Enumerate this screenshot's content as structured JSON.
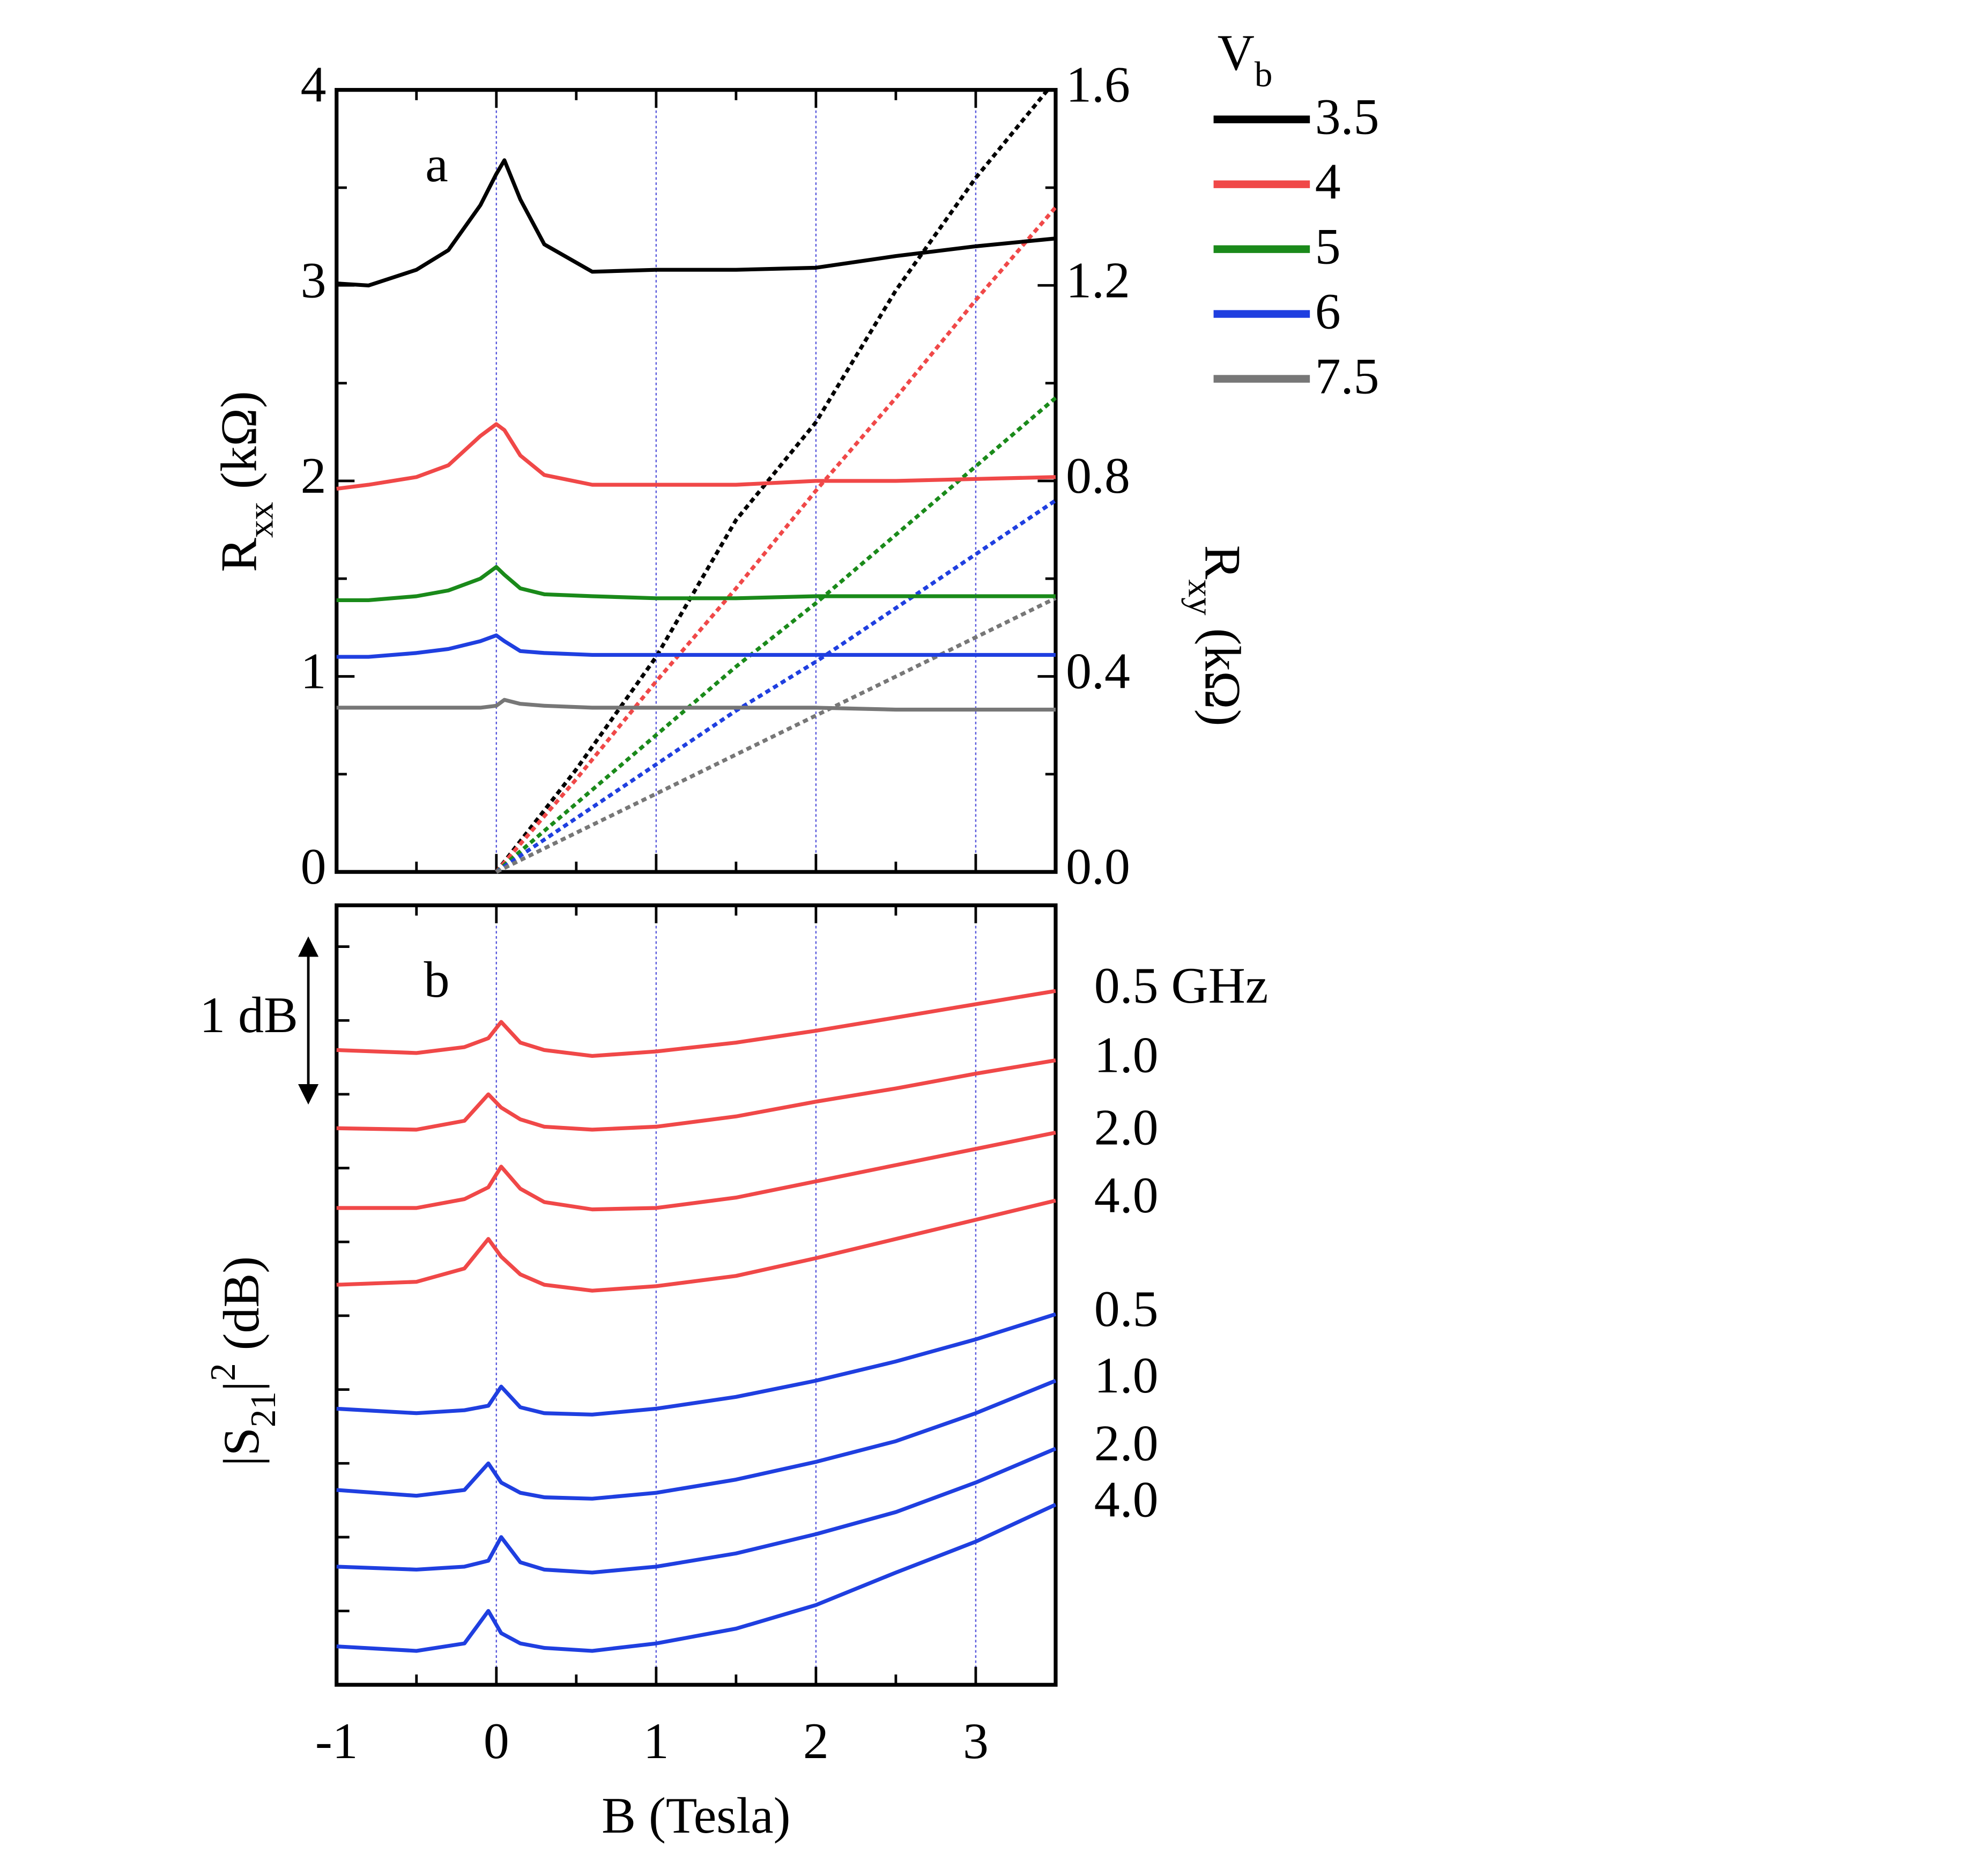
{
  "chart_data": [
    {
      "type": "line",
      "label": "a",
      "xlim": [
        -1,
        3.5
      ],
      "xticks": [
        -1,
        0,
        1,
        2,
        3
      ],
      "xminor": [
        -0.5,
        0.5,
        1.5,
        2.5
      ],
      "ylim": [
        0,
        4
      ],
      "yticks": [
        0,
        1,
        2,
        3,
        4
      ],
      "yminor": [
        0.5,
        1.5,
        2.5,
        3.5
      ],
      "y2lim": [
        0,
        1.6
      ],
      "y2ticks": [
        {
          "value": 0,
          "label": "0.0"
        },
        0.4,
        0.8,
        1.2,
        1.6
      ],
      "y2minor": [
        0.2,
        0.6,
        1.0,
        1.4
      ],
      "grid": "x",
      "grid_color": "#5a5adc",
      "ylabel": {
        "text": "R",
        "sub": "xx",
        "rest": " (kΩ)"
      },
      "y2label": {
        "text": "R",
        "sub": "xy",
        "rest": " (kΩ)"
      },
      "legend_title": {
        "text": "V",
        "sub": "b"
      },
      "x": [
        -1,
        -0.8,
        -0.5,
        -0.3,
        -0.1,
        0,
        0.05,
        0.15,
        0.3,
        0.6,
        1,
        1.5,
        2,
        2.5,
        3,
        3.5
      ],
      "series": [
        {
          "name": "3.5",
          "color": "#000000",
          "values": [
            3.01,
            3.0,
            3.08,
            3.18,
            3.41,
            3.57,
            3.64,
            3.44,
            3.21,
            3.07,
            3.08,
            3.08,
            3.09,
            3.15,
            3.2,
            3.24
          ]
        },
        {
          "name": "4",
          "color": "#f04848",
          "values": [
            1.96,
            1.98,
            2.02,
            2.08,
            2.23,
            2.29,
            2.26,
            2.13,
            2.03,
            1.98,
            1.98,
            1.98,
            2.0,
            2.0,
            2.01,
            2.02
          ]
        },
        {
          "name": "5",
          "color": "#1a8a1a",
          "values": [
            1.39,
            1.39,
            1.41,
            1.44,
            1.5,
            1.56,
            1.52,
            1.45,
            1.42,
            1.41,
            1.4,
            1.4,
            1.41,
            1.41,
            1.41,
            1.41
          ]
        },
        {
          "name": "6",
          "color": "#1f3fe0",
          "values": [
            1.1,
            1.1,
            1.12,
            1.14,
            1.18,
            1.21,
            1.18,
            1.13,
            1.12,
            1.11,
            1.11,
            1.11,
            1.11,
            1.11,
            1.11,
            1.11
          ]
        },
        {
          "name": "7.5",
          "color": "#777777",
          "values": [
            0.84,
            0.84,
            0.84,
            0.84,
            0.84,
            0.85,
            0.88,
            0.86,
            0.85,
            0.84,
            0.84,
            0.84,
            0.84,
            0.83,
            0.83,
            0.83
          ]
        }
      ],
      "hall_series": [
        {
          "color": "#000000",
          "axis": "y2",
          "x": [
            0,
            0.5,
            1,
            1.5,
            2,
            2.5,
            3,
            3.45
          ],
          "values": [
            0,
            0.21,
            0.44,
            0.72,
            0.92,
            1.19,
            1.42,
            1.6
          ]
        },
        {
          "color": "#f04848",
          "axis": "y2",
          "x": [
            0,
            0.5,
            1,
            1.5,
            2,
            2.5,
            3,
            3.5
          ],
          "values": [
            0,
            0.19,
            0.39,
            0.58,
            0.78,
            0.97,
            1.17,
            1.36
          ]
        },
        {
          "color": "#1a8a1a",
          "axis": "y2",
          "x": [
            0,
            0.5,
            1,
            1.5,
            2,
            2.5,
            3,
            3.5
          ],
          "values": [
            0,
            0.14,
            0.28,
            0.42,
            0.55,
            0.69,
            0.83,
            0.97
          ]
        },
        {
          "color": "#1f3fe0",
          "axis": "y2",
          "x": [
            0,
            0.5,
            1,
            1.5,
            2,
            2.5,
            3,
            3.5
          ],
          "values": [
            0,
            0.11,
            0.22,
            0.33,
            0.43,
            0.54,
            0.65,
            0.76
          ]
        },
        {
          "color": "#777777",
          "axis": "y2",
          "x": [
            0,
            0.5,
            1,
            1.5,
            2,
            2.5,
            3,
            3.5
          ],
          "values": [
            0,
            0.08,
            0.16,
            0.24,
            0.32,
            0.4,
            0.48,
            0.56
          ]
        }
      ]
    },
    {
      "type": "line",
      "label": "b",
      "xlabel": "B (Tesla)",
      "xlim": [
        -1,
        3.5
      ],
      "xticks": [
        -1,
        0,
        1,
        2,
        3
      ],
      "xminor": [
        -0.5,
        0.5,
        1.5,
        2.5
      ],
      "ylim": [
        0,
        5.28
      ],
      "yticks": [
        0,
        0.5,
        1,
        1.5,
        2,
        2.5,
        3,
        3.5,
        4,
        4.5,
        5
      ],
      "grid": "x",
      "grid_color": "#5a5adc",
      "ylabel": {
        "text": "|S",
        "sub": "21",
        "mid": "|",
        "sup": "2",
        "rest": " (dB)"
      },
      "annotation": {
        "text": "1 dB",
        "from": 5,
        "to": 4
      },
      "x": [
        -1,
        -0.5,
        -0.2,
        -0.05,
        0.03,
        0.15,
        0.3,
        0.6,
        1,
        1.5,
        2,
        2.5,
        3,
        3.5
      ],
      "series": [
        {
          "name": "0.5 GHz",
          "color": "#f04848",
          "values": [
            4.3,
            4.28,
            4.32,
            4.38,
            4.49,
            4.35,
            4.3,
            4.26,
            4.29,
            4.35,
            4.43,
            4.52,
            4.61,
            4.7
          ]
        },
        {
          "name": "1.0",
          "color": "#f04848",
          "values": [
            3.77,
            3.76,
            3.82,
            4.0,
            3.91,
            3.83,
            3.78,
            3.76,
            3.78,
            3.85,
            3.95,
            4.04,
            4.14,
            4.23
          ]
        },
        {
          "name": "2.0",
          "color": "#f04848",
          "values": [
            3.23,
            3.23,
            3.29,
            3.37,
            3.51,
            3.36,
            3.27,
            3.22,
            3.23,
            3.3,
            3.41,
            3.52,
            3.63,
            3.74
          ]
        },
        {
          "name": "4.0",
          "color": "#f04848",
          "values": [
            2.71,
            2.73,
            2.82,
            3.02,
            2.9,
            2.78,
            2.71,
            2.67,
            2.7,
            2.77,
            2.89,
            3.02,
            3.15,
            3.28
          ]
        },
        {
          "name": "0.5",
          "color": "#1f3fe0",
          "values": [
            1.87,
            1.84,
            1.86,
            1.89,
            2.02,
            1.88,
            1.84,
            1.83,
            1.87,
            1.95,
            2.06,
            2.19,
            2.34,
            2.51
          ]
        },
        {
          "name": "1.0",
          "color": "#1f3fe0",
          "values": [
            1.32,
            1.28,
            1.32,
            1.5,
            1.37,
            1.3,
            1.27,
            1.26,
            1.3,
            1.39,
            1.51,
            1.65,
            1.84,
            2.06
          ]
        },
        {
          "name": "2.0",
          "color": "#1f3fe0",
          "values": [
            0.8,
            0.78,
            0.8,
            0.84,
            1.0,
            0.83,
            0.78,
            0.76,
            0.8,
            0.89,
            1.02,
            1.17,
            1.37,
            1.6
          ]
        },
        {
          "name": "4.0",
          "color": "#1f3fe0",
          "values": [
            0.26,
            0.23,
            0.28,
            0.5,
            0.35,
            0.28,
            0.25,
            0.23,
            0.28,
            0.38,
            0.54,
            0.76,
            0.97,
            1.22
          ]
        }
      ]
    }
  ]
}
